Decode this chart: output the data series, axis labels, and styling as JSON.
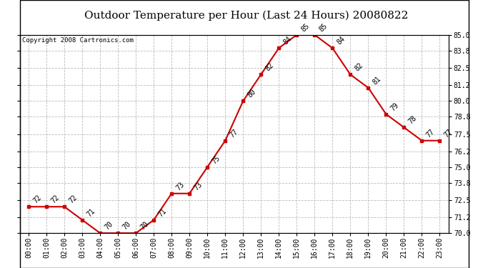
{
  "title": "Outdoor Temperature per Hour (Last 24 Hours) 20080822",
  "copyright": "Copyright 2008 Cartronics.com",
  "hours": [
    "00:00",
    "01:00",
    "02:00",
    "03:00",
    "04:00",
    "05:00",
    "06:00",
    "07:00",
    "08:00",
    "09:00",
    "10:00",
    "11:00",
    "12:00",
    "13:00",
    "14:00",
    "15:00",
    "16:00",
    "17:00",
    "18:00",
    "19:00",
    "20:00",
    "21:00",
    "22:00",
    "23:00"
  ],
  "temps": [
    72,
    72,
    72,
    71,
    70,
    70,
    70,
    71,
    73,
    73,
    75,
    77,
    80,
    82,
    84,
    85,
    85,
    84,
    82,
    81,
    79,
    78,
    77,
    77
  ],
  "ylim_min": 70.0,
  "ylim_max": 85.0,
  "yticks": [
    70.0,
    71.2,
    72.5,
    73.8,
    75.0,
    76.2,
    77.5,
    78.8,
    80.0,
    81.2,
    82.5,
    83.8,
    85.0
  ],
  "line_color": "#cc0000",
  "marker_color": "#cc0000",
  "bg_color": "white",
  "grid_color": "#bbbbbb",
  "title_fontsize": 11,
  "annot_fontsize": 7,
  "copyright_fontsize": 6.5,
  "tick_fontsize": 7
}
